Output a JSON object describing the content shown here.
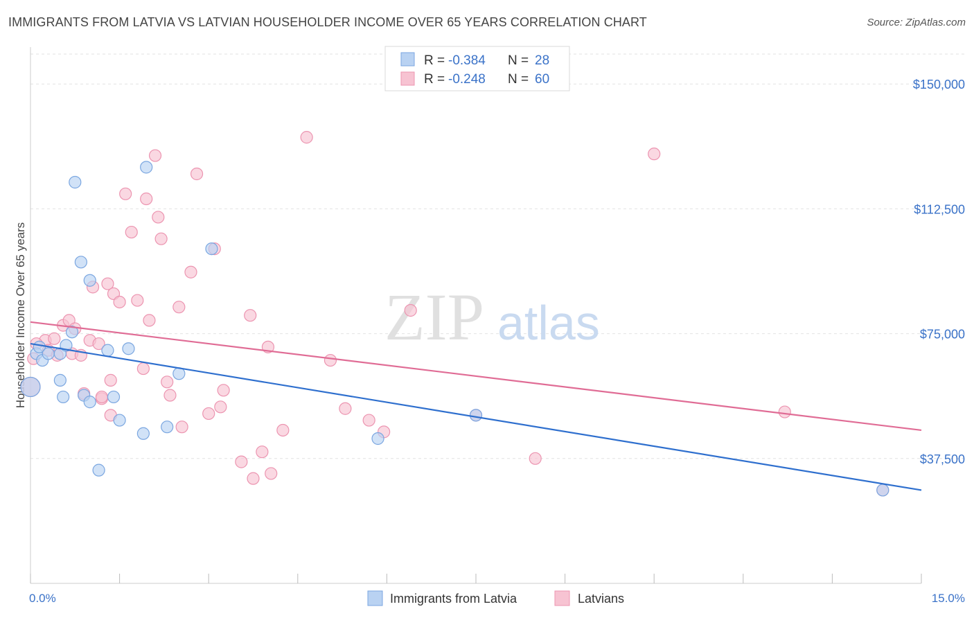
{
  "title": "IMMIGRANTS FROM LATVIA VS LATVIAN HOUSEHOLDER INCOME OVER 65 YEARS CORRELATION CHART",
  "source": "Source: ZipAtlas.com",
  "watermark": {
    "zip": "ZIP",
    "atlas": "atlas"
  },
  "colors": {
    "blue_fill": "#b9d2f2",
    "blue_stroke": "#7aa6e0",
    "blue_line": "#2e6fce",
    "pink_fill": "#f7c3d2",
    "pink_stroke": "#ec94b0",
    "pink_line": "#e06c95",
    "tick_text": "#3a72c8",
    "grid": "#e2e2e2"
  },
  "legend": {
    "rows": [
      {
        "r_label": "R = ",
        "r_value": "-0.384",
        "n_label": "N = ",
        "n_value": "28"
      },
      {
        "r_label": "R = ",
        "r_value": "-0.248",
        "n_label": "N = ",
        "n_value": "60"
      }
    ]
  },
  "chart_data": {
    "type": "scatter",
    "ylabel": "Householder Income Over 65 years",
    "xlim": [
      0,
      15
    ],
    "ylim": [
      0,
      150000
    ],
    "x_tick_labels": [
      "0.0%",
      "15.0%"
    ],
    "y_ticks": [
      37500,
      75000,
      112500,
      150000
    ],
    "y_tick_labels": [
      "$37,500",
      "$75,000",
      "$112,500",
      "$150,000"
    ],
    "grid": true,
    "legend_position": "top-center",
    "series": [
      {
        "name": "Immigrants from Latvia",
        "trend": {
          "x0": 0,
          "y0": 72000,
          "x1": 15,
          "y1": 28000
        },
        "points": [
          [
            0.0,
            59000
          ],
          [
            0.1,
            69000
          ],
          [
            0.15,
            71000
          ],
          [
            0.2,
            67000
          ],
          [
            0.3,
            69000
          ],
          [
            0.5,
            69000
          ],
          [
            0.5,
            61000
          ],
          [
            0.55,
            56000
          ],
          [
            0.6,
            71500
          ],
          [
            0.7,
            75500
          ],
          [
            0.75,
            120500
          ],
          [
            0.85,
            96500
          ],
          [
            0.9,
            56500
          ],
          [
            1.0,
            91000
          ],
          [
            1.0,
            54500
          ],
          [
            1.15,
            34000
          ],
          [
            1.3,
            70000
          ],
          [
            1.4,
            56000
          ],
          [
            1.5,
            49000
          ],
          [
            1.65,
            70500
          ],
          [
            1.9,
            45000
          ],
          [
            1.95,
            125000
          ],
          [
            2.3,
            47000
          ],
          [
            2.5,
            63000
          ],
          [
            3.05,
            100500
          ],
          [
            5.85,
            43500
          ],
          [
            7.5,
            50500
          ],
          [
            14.35,
            28000
          ]
        ]
      },
      {
        "name": "Latvians",
        "trend": {
          "x0": 0,
          "y0": 78500,
          "x1": 15,
          "y1": 46000
        },
        "points": [
          [
            0.0,
            59000
          ],
          [
            0.05,
            67500
          ],
          [
            0.25,
            73000
          ],
          [
            0.3,
            70000
          ],
          [
            0.4,
            73500
          ],
          [
            0.45,
            68500
          ],
          [
            0.55,
            77500
          ],
          [
            0.65,
            79000
          ],
          [
            0.7,
            69000
          ],
          [
            0.75,
            76500
          ],
          [
            0.85,
            68500
          ],
          [
            0.9,
            57000
          ],
          [
            1.0,
            73000
          ],
          [
            1.05,
            89000
          ],
          [
            1.15,
            72000
          ],
          [
            1.2,
            55500
          ],
          [
            1.3,
            90000
          ],
          [
            1.35,
            50500
          ],
          [
            1.35,
            61000
          ],
          [
            1.4,
            87000
          ],
          [
            1.5,
            84500
          ],
          [
            1.6,
            117000
          ],
          [
            1.7,
            105500
          ],
          [
            1.8,
            85000
          ],
          [
            1.9,
            64500
          ],
          [
            1.95,
            115500
          ],
          [
            2.0,
            79000
          ],
          [
            2.1,
            128500
          ],
          [
            2.15,
            110000
          ],
          [
            2.2,
            103500
          ],
          [
            2.3,
            60500
          ],
          [
            2.35,
            56500
          ],
          [
            2.5,
            83000
          ],
          [
            2.55,
            47000
          ],
          [
            2.7,
            93500
          ],
          [
            2.8,
            123000
          ],
          [
            3.0,
            51000
          ],
          [
            3.2,
            53000
          ],
          [
            3.25,
            58000
          ],
          [
            3.55,
            36500
          ],
          [
            3.7,
            80500
          ],
          [
            3.75,
            31500
          ],
          [
            3.9,
            39500
          ],
          [
            4.0,
            71000
          ],
          [
            4.05,
            33000
          ],
          [
            4.25,
            46000
          ],
          [
            4.65,
            134000
          ],
          [
            5.05,
            67000
          ],
          [
            5.3,
            52500
          ],
          [
            5.7,
            49000
          ],
          [
            5.95,
            45500
          ],
          [
            6.4,
            82000
          ],
          [
            7.5,
            50500
          ],
          [
            8.5,
            37500
          ],
          [
            10.5,
            129000
          ],
          [
            12.7,
            51500
          ],
          [
            14.35,
            28000
          ],
          [
            0.1,
            72000
          ],
          [
            1.2,
            56000
          ],
          [
            3.1,
            100500
          ]
        ]
      }
    ]
  }
}
